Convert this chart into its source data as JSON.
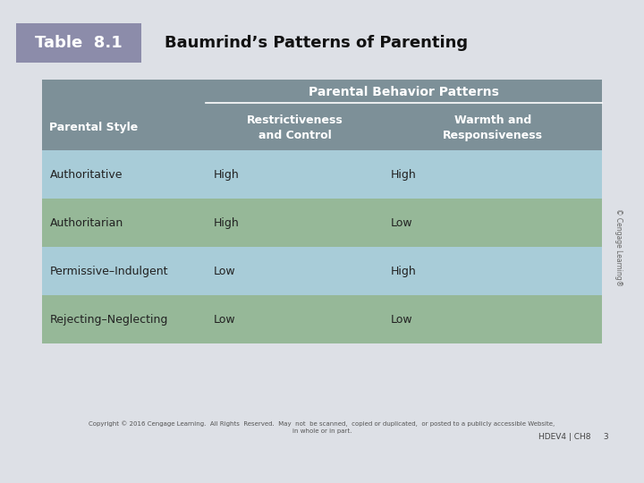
{
  "title_label": "Table  8.1",
  "title_label_bg": "#8c8caa",
  "title_text": "Baumrind’s Patterns of Parenting",
  "page_bg": "#dde0e6",
  "header_bg": "#7d9098",
  "row_colors": [
    "#a8ccd8",
    "#96b898",
    "#a8ccd8",
    "#96b898"
  ],
  "row_text_color": "#222222",
  "col_header": [
    "Parental Style",
    "Restrictiveness\nand Control",
    "Warmth and\nResponsiveness"
  ],
  "group_header": "Parental Behavior Patterns",
  "rows": [
    [
      "Authoritative",
      "High",
      "High"
    ],
    [
      "Authoritarian",
      "High",
      "Low"
    ],
    [
      "Permissive–Indulgent",
      "Low",
      "High"
    ],
    [
      "Rejecting–Neglecting",
      "Low",
      "Low"
    ]
  ],
  "copyright_text": "Copyright © 2016 Cengage Learning.  All Rights  Reserved.  May  not  be scanned,  copied or duplicated,  or posted to a publicly accessible Website,\nin whole or in part.",
  "page_ref": "HDEV4 | CH8     3",
  "watermark": "© Cengage Learning®"
}
